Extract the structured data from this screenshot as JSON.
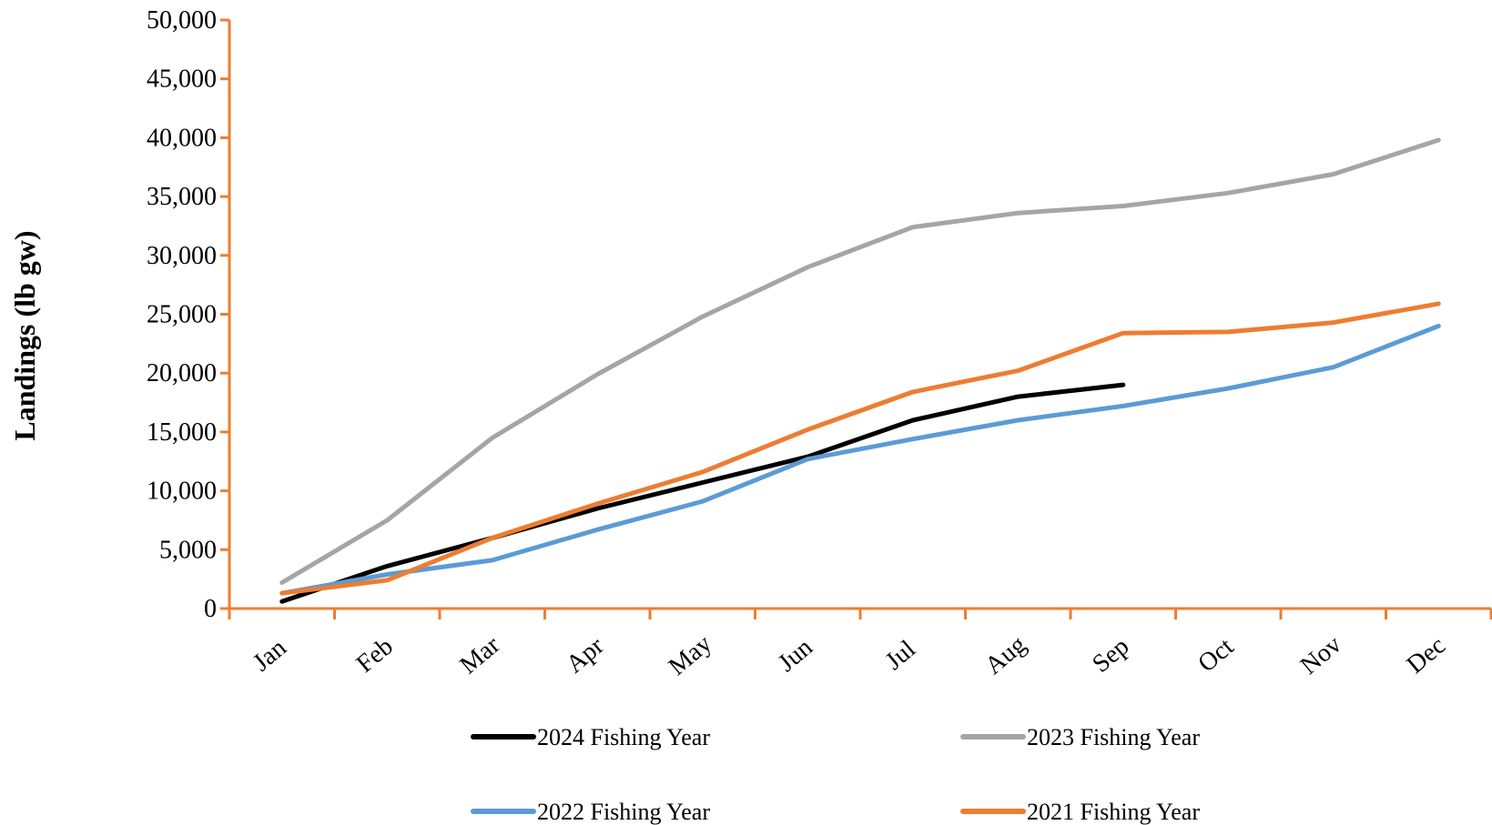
{
  "chart_data": {
    "type": "line",
    "title": "",
    "xlabel": "",
    "ylabel": "Landings (lb gw)",
    "categories": [
      "Jan",
      "Feb",
      "Mar",
      "Apr",
      "May",
      "Jun",
      "Jul",
      "Aug",
      "Sep",
      "Oct",
      "Nov",
      "Dec"
    ],
    "ylim": [
      0,
      50000
    ],
    "yticks": [
      0,
      5000,
      10000,
      15000,
      20000,
      25000,
      30000,
      35000,
      40000,
      45000,
      50000
    ],
    "ytick_labels": [
      "0",
      "5,000",
      "10,000",
      "15,000",
      "20,000",
      "25,000",
      "30,000",
      "35,000",
      "40,000",
      "45,000",
      "50,000"
    ],
    "grid": false,
    "legend_position": "bottom",
    "axis_color": "#ED7D31",
    "series": [
      {
        "name": "2024 Fishing Year",
        "color": "#000000",
        "values": [
          600,
          3600,
          6000,
          8500,
          10700,
          12900,
          16000,
          18000,
          19000,
          null,
          null,
          null
        ]
      },
      {
        "name": "2023 Fishing Year",
        "color": "#A5A5A5",
        "values": [
          2200,
          7500,
          14500,
          19900,
          24800,
          29000,
          32400,
          33600,
          34200,
          35300,
          36900,
          39800
        ]
      },
      {
        "name": "2022 Fishing Year",
        "color": "#5B9BD5",
        "values": [
          1300,
          2900,
          4100,
          6700,
          9100,
          12700,
          14400,
          16000,
          17200,
          18700,
          20500,
          24000
        ]
      },
      {
        "name": "2021 Fishing Year",
        "color": "#ED7D31",
        "values": [
          1300,
          2400,
          6000,
          8900,
          11600,
          15200,
          18400,
          20200,
          23400,
          23500,
          24300,
          25900
        ]
      }
    ]
  }
}
